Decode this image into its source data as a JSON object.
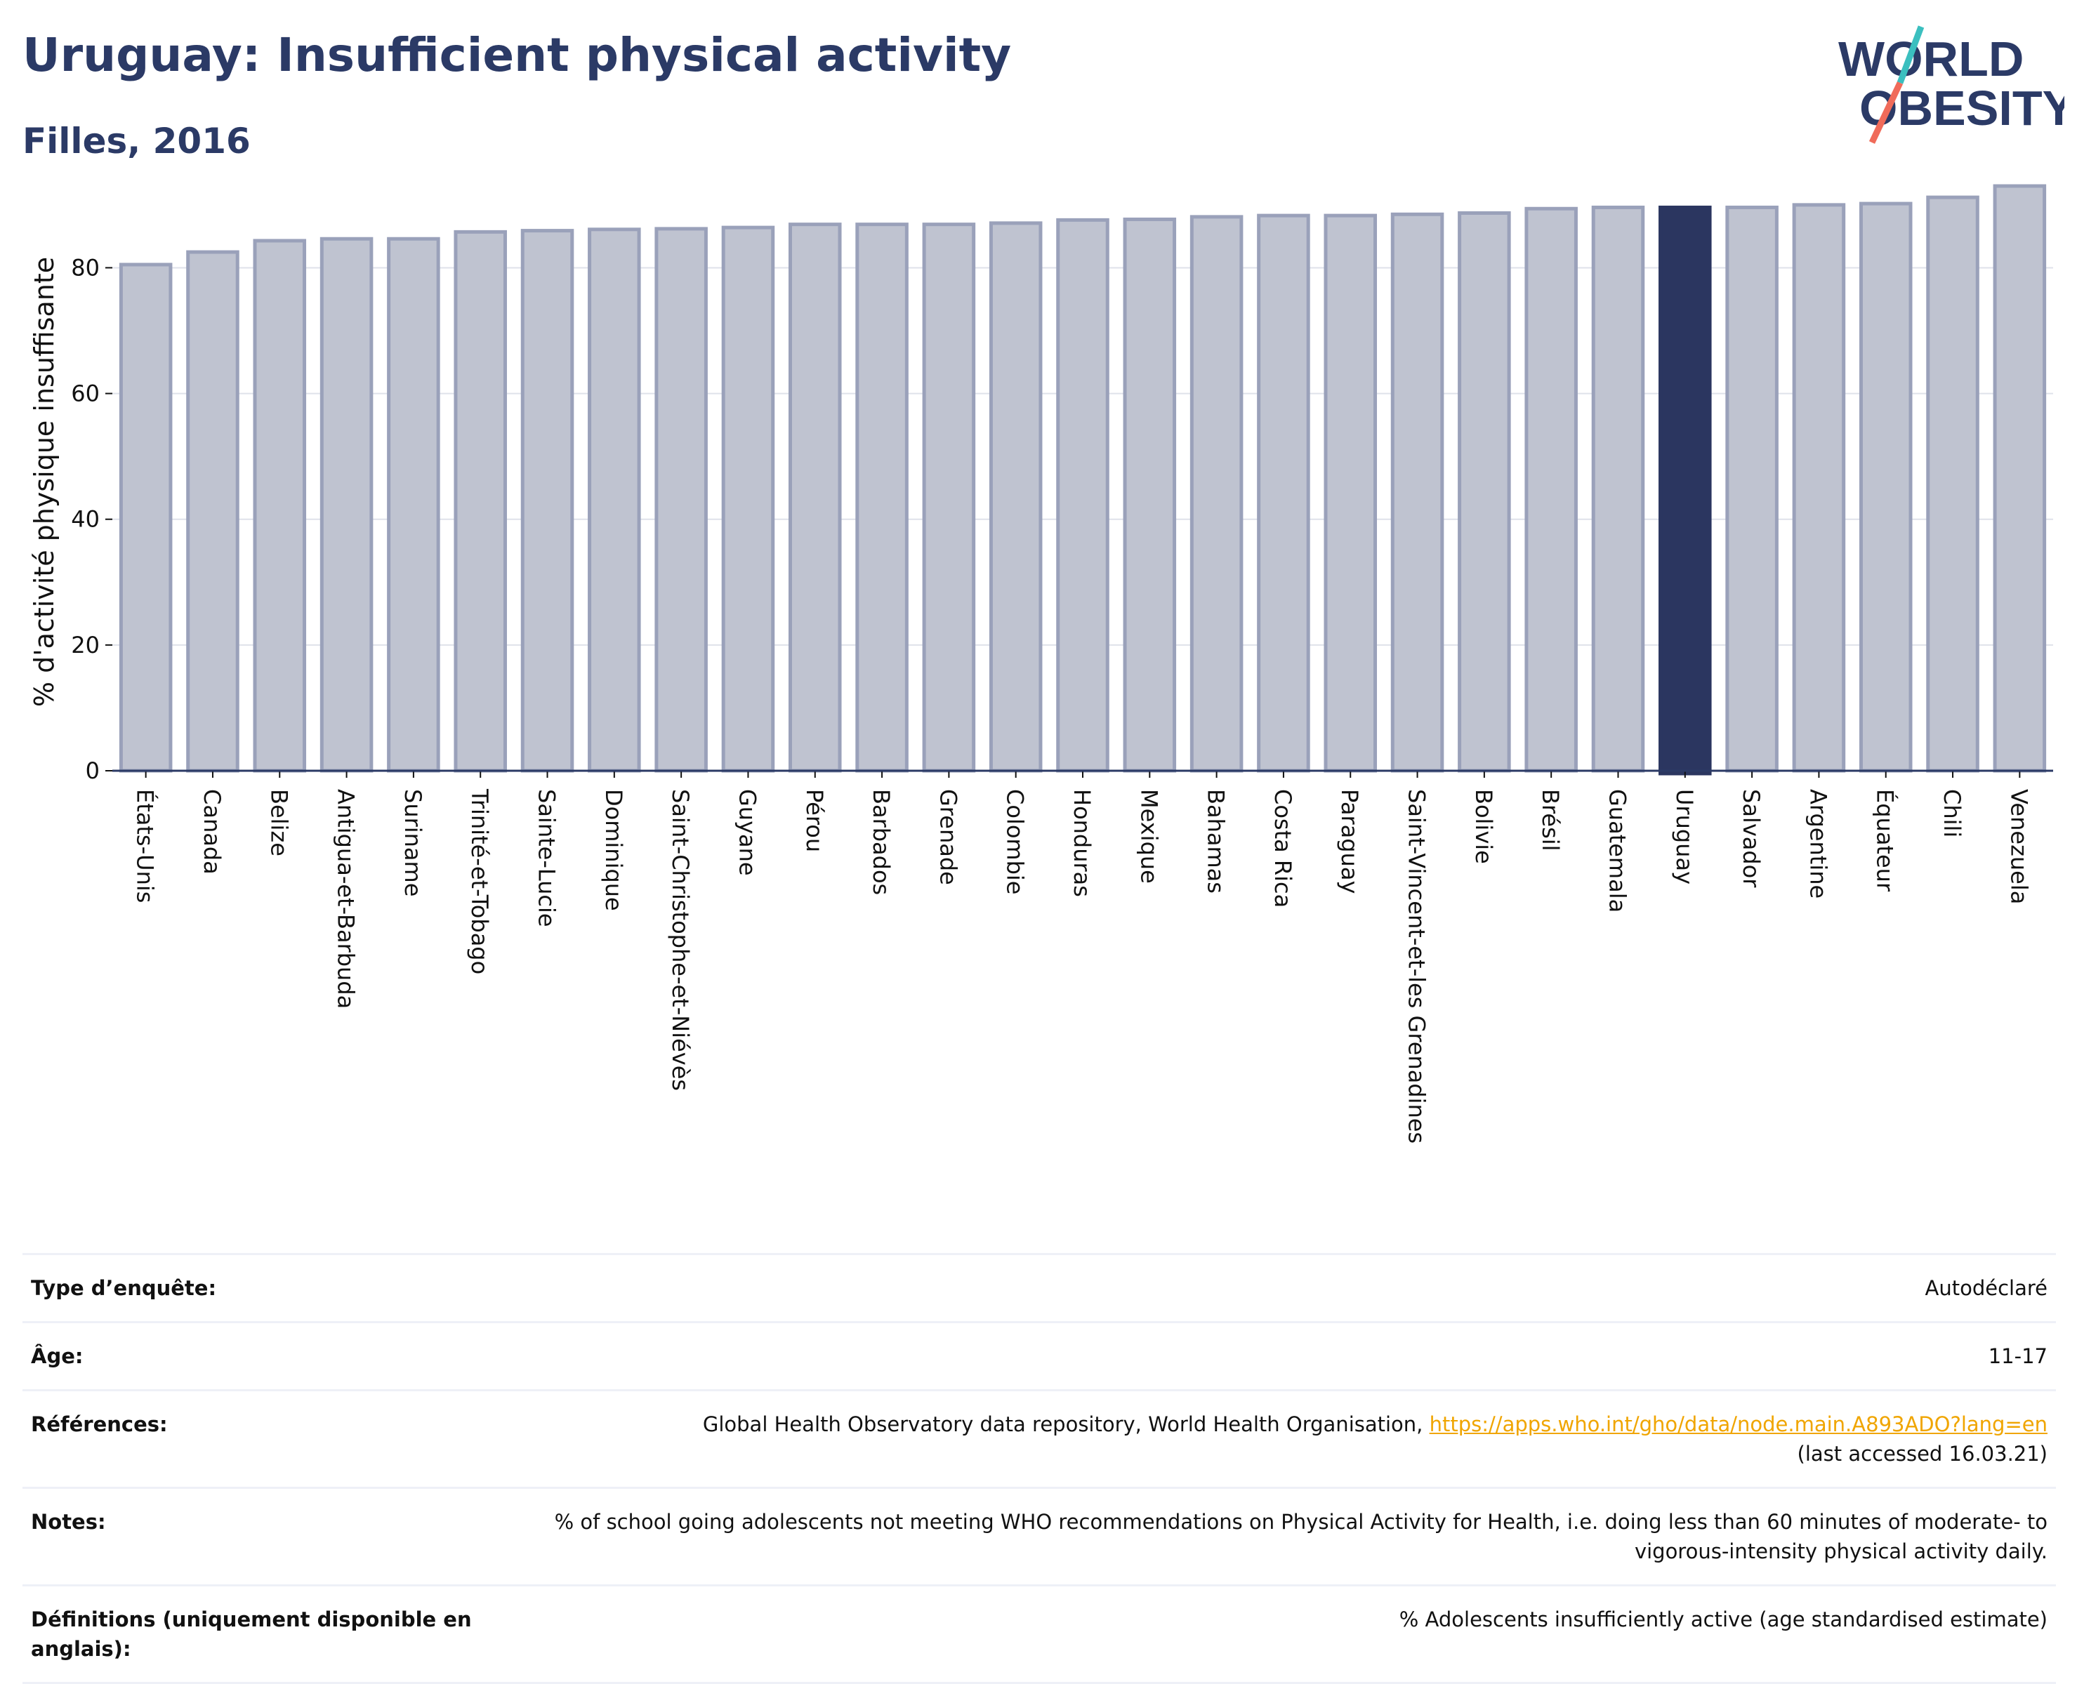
{
  "header": {
    "title": "Uruguay: Insufficient physical activity",
    "subtitle": "Filles, 2016"
  },
  "logo": {
    "line1": "WORLD",
    "line2": "OBESITY",
    "colors": {
      "text": "#2b3a66",
      "slash_top": "#3bbfbf",
      "slash_bottom": "#f06b5a"
    }
  },
  "colors": {
    "bar": "#bfc3d0",
    "bar_outline": "#9aa1ba",
    "highlight": "#2b3660",
    "grid": "#dfe2ea",
    "axis": "#2b3a66"
  },
  "chart_data": {
    "type": "bar",
    "title": "",
    "xlabel": "",
    "ylabel": "% d'activité physique insuffisante",
    "ylim": [
      0,
      93
    ],
    "yticks": [
      0,
      20,
      40,
      60,
      80
    ],
    "grid": true,
    "highlight": "Uruguay",
    "categories": [
      "États-Unis",
      "Canada",
      "Belize",
      "Antigua-et-Barbuda",
      "Suriname",
      "Trinité-et-Tobago",
      "Sainte-Lucie",
      "Dominique",
      "Saint-Christophe-et-Niévès",
      "Guyane",
      "Pérou",
      "Barbados",
      "Grenade",
      "Colombie",
      "Honduras",
      "Mexique",
      "Bahamas",
      "Costa Rica",
      "Paraguay",
      "Saint-Vincent-et-les Grenadines",
      "Bolivie",
      "Brésil",
      "Guatemala",
      "Uruguay",
      "Salvador",
      "Argentine",
      "Équateur",
      "Chili",
      "Venezuela"
    ],
    "values": [
      80.5,
      82.5,
      84.3,
      84.6,
      84.6,
      85.7,
      85.9,
      86.1,
      86.2,
      86.4,
      86.9,
      86.9,
      86.9,
      87.1,
      87.6,
      87.7,
      88.1,
      88.3,
      88.3,
      88.5,
      88.7,
      89.4,
      89.6,
      89.6,
      89.6,
      90.0,
      90.2,
      91.2,
      93.0
    ]
  },
  "info": {
    "rows": [
      {
        "key": "Type d’enquête:",
        "value": "Autodéclaré"
      },
      {
        "key": "Âge:",
        "value": "11-17"
      },
      {
        "key": "Références:",
        "value": "Global Health Observatory data repository, World Health Organisation,",
        "link": "https://apps.who.int/gho/data/node.main.A893ADO?lang=en",
        "extra": "(last accessed 16.03.21)"
      },
      {
        "key": "Notes:",
        "value": "% of school going adolescents not meeting WHO recommendations on Physical Activity for Health, i.e. doing less than 60 minutes of moderate- to vigorous-intensity physical activity daily."
      },
      {
        "key": "Définitions (uniquement disponible en anglais):",
        "value": "% Adolescents insufficiently active (age standardised estimate)"
      }
    ]
  }
}
